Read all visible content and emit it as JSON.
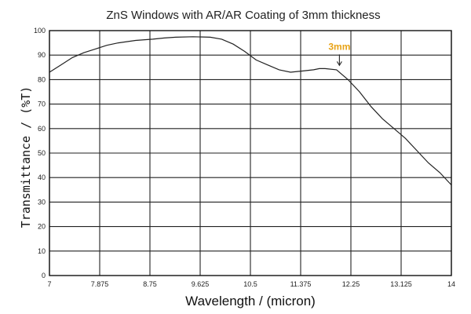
{
  "chart_data": {
    "type": "line",
    "title": "ZnS Windows with AR/AR Coating of 3mm thickness",
    "xlabel": "Wavelength / (micron)",
    "ylabel": "Transmittance / (%T)",
    "xlim": [
      7,
      14
    ],
    "ylim": [
      0,
      100
    ],
    "x_ticks": [
      "7",
      "7.875",
      "8.75",
      "9.625",
      "10.5",
      "11.375",
      "12.25",
      "13.125",
      "14"
    ],
    "y_ticks": [
      "0",
      "10",
      "20",
      "30",
      "40",
      "50",
      "60",
      "70",
      "80",
      "90",
      "100"
    ],
    "grid": true,
    "series": [
      {
        "name": "3mm",
        "x": [
          7.0,
          7.2,
          7.4,
          7.6,
          7.8,
          8.0,
          8.2,
          8.5,
          8.8,
          9.0,
          9.2,
          9.5,
          9.8,
          10.0,
          10.2,
          10.4,
          10.6,
          10.8,
          11.0,
          11.2,
          11.4,
          11.6,
          11.7,
          11.8,
          12.0,
          12.2,
          12.4,
          12.6,
          12.8,
          13.0,
          13.2,
          13.4,
          13.6,
          13.8,
          14.0
        ],
        "y": [
          83,
          86,
          89,
          91,
          92.5,
          94,
          95,
          96,
          96.5,
          97,
          97.3,
          97.5,
          97.3,
          96.5,
          94.5,
          91.5,
          88,
          86,
          84,
          83,
          83.5,
          84,
          84.5,
          84.5,
          84,
          80,
          75,
          69,
          64,
          60,
          56,
          51,
          46,
          42,
          37
        ]
      }
    ],
    "annotations": [
      {
        "text": "3mm",
        "x": 12.05,
        "y": 84.5,
        "arrow": "down",
        "color": "#e8a317"
      }
    ]
  }
}
